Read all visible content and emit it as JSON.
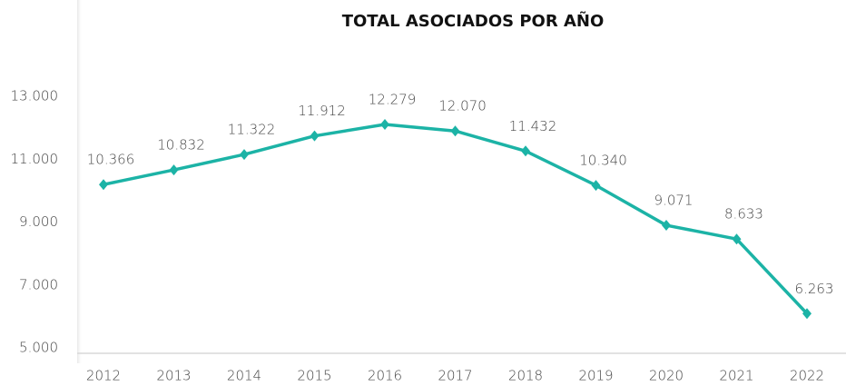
{
  "chart_data": {
    "type": "line",
    "title": "TOTAL ASOCIADOS POR AÑO",
    "categories": [
      "2012",
      "2013",
      "2014",
      "2015",
      "2016",
      "2017",
      "2018",
      "2019",
      "2020",
      "2021",
      "2022"
    ],
    "series": [
      {
        "name": "Total asociados",
        "color": "#1cb3a6",
        "values": [
          10366,
          10832,
          11322,
          11912,
          12279,
          12070,
          11432,
          10340,
          9071,
          8633,
          6263
        ],
        "value_labels": [
          "10.366",
          "10.832",
          "11.322",
          "11.912",
          "12.279",
          "12.070",
          "11.432",
          "10.340",
          "9.071",
          "8.633",
          "6.263"
        ]
      }
    ],
    "ylim": [
      5000,
      13000
    ],
    "yticks": [
      {
        "value": 5000,
        "label": "5.000"
      },
      {
        "value": 7000,
        "label": "7.000"
      },
      {
        "value": 9000,
        "label": "9.000"
      },
      {
        "value": 11000,
        "label": "11.000"
      },
      {
        "value": 13000,
        "label": "13.000"
      }
    ]
  }
}
